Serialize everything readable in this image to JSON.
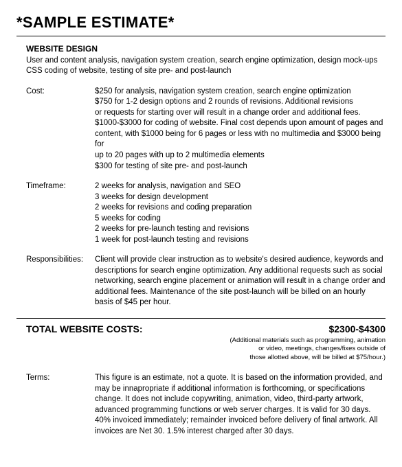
{
  "title": "*SAMPLE ESTIMATE*",
  "section": {
    "heading": "WEBSITE DESIGN",
    "description": "User and content analysis, navigation system creation, search engine optimization, design mock-ups CSS coding of website, testing of site pre- and post-launch"
  },
  "cost": {
    "label": "Cost:",
    "lines": [
      "$250 for analysis, navigation system creation, search engine optimization",
      "$750 for 1-2 design options and 2 rounds of revisions. Additional revisions",
      "or requests for starting over will result in a change order and additional fees.",
      "$1000-$3000 for coding of website. Final cost depends upon amount of pages and",
      "content, with $1000 being for 6 pages or less with no multimedia and $3000 being for",
      "up to 20 pages with up to 2 multimedia elements",
      "$300 for testing of site pre- and post-launch"
    ]
  },
  "timeframe": {
    "label": "Timeframe:",
    "lines": [
      "2 weeks for analysis, navigation and SEO",
      "3 weeks for design development",
      "2 weeks for revisions and coding preparation",
      "5 weeks for coding",
      "2 weeks for pre-launch testing and revisions",
      "1 week for post-launch testing and revisions"
    ]
  },
  "responsibilities": {
    "label": "Responsibilities:",
    "body": "Client will provide clear instruction as to website's desired audience, keywords and descriptions for search engine optimization. Any additional requests such as social networking, search engine placement or animation will result in a change order and additional fees. Maintenance of the site post-launch will be billed on an hourly basis of $45 per hour."
  },
  "total": {
    "label": "TOTAL WEBSITE COSTS:",
    "amount": "$2300-$4300",
    "note1": "(Additional materials such as programming, animation",
    "note2": "or video, meetings, changes/fixes outside of",
    "note3": "those allotted above, will be billed at $75/hour.)"
  },
  "terms": {
    "label": "Terms:",
    "body": "This figure is an estimate, not a quote. It is based on the information provided, and may be innapropriate if additional information is forthcoming, or specifications change. It does not include copywriting, animation, video, third-party artwork, advanced programming functions or web server charges. It is valid for 30 days. 40% invoiced immediately; remainder invoiced before delivery of final artwork. All invoices are Net 30. 1.5% interest charged after 30 days."
  }
}
